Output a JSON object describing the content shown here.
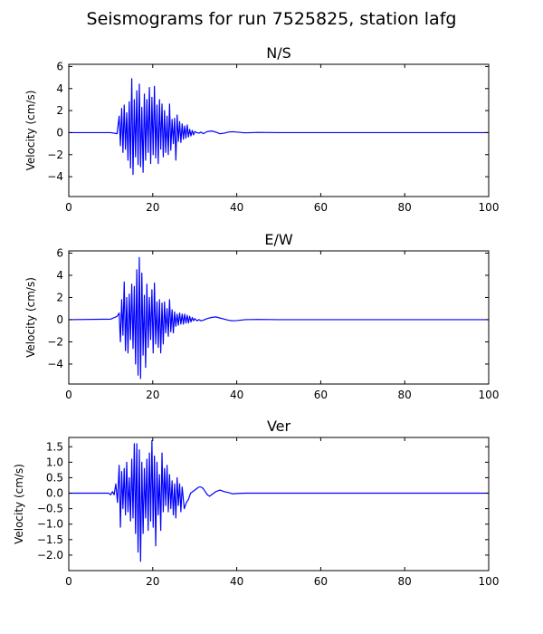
{
  "figure": {
    "title": "Seismograms for run 7525825, station lafg"
  },
  "chart_data": [
    {
      "type": "line",
      "title": "N/S",
      "xlabel": "",
      "ylabel": "Velocity (cm/s)",
      "xlim": [
        0,
        100
      ],
      "ylim": [
        -5.8,
        6.2
      ],
      "xticks": [
        0,
        20,
        40,
        60,
        80,
        100
      ],
      "xtick_labels": [
        "0",
        "20",
        "40",
        "60",
        "80",
        "100"
      ],
      "yticks": [
        -4,
        -2,
        0,
        2,
        4,
        6
      ],
      "ytick_labels": [
        "−4",
        "−2",
        "0",
        "2",
        "4",
        "6"
      ],
      "grid": false,
      "series": [
        {
          "color": "#0000ff",
          "x": [
            0,
            10,
            11.5,
            12.0,
            12.3,
            12.6,
            12.9,
            13.2,
            13.5,
            13.8,
            14.1,
            14.4,
            14.7,
            15.0,
            15.3,
            15.6,
            15.9,
            16.2,
            16.5,
            16.8,
            17.1,
            17.4,
            17.7,
            18.0,
            18.3,
            18.6,
            18.9,
            19.2,
            19.5,
            19.8,
            20.1,
            20.4,
            20.7,
            21.0,
            21.3,
            21.6,
            21.9,
            22.2,
            22.5,
            22.8,
            23.1,
            23.4,
            23.7,
            24.0,
            24.3,
            24.6,
            24.9,
            25.2,
            25.5,
            25.8,
            26.1,
            26.4,
            26.7,
            27.0,
            27.3,
            27.6,
            27.9,
            28.2,
            28.5,
            28.8,
            29.1,
            29.4,
            29.7,
            30.0,
            30.5,
            31.0,
            31.5,
            32.0,
            33.0,
            34.0,
            35.0,
            36.0,
            37.0,
            38.0,
            39.0,
            40.0,
            42.0,
            45.0,
            50.0,
            60.0,
            80.0,
            100.0
          ],
          "y": [
            0,
            0,
            -0.1,
            1.5,
            -1.2,
            2.2,
            -1.8,
            2.5,
            -1.5,
            1.8,
            -2.5,
            2.8,
            -3.2,
            4.9,
            -3.8,
            3.0,
            -2.2,
            3.8,
            -2.9,
            4.4,
            -3.1,
            2.3,
            -3.6,
            3.5,
            -2.5,
            3.0,
            -1.8,
            4.1,
            -2.8,
            3.2,
            -2.0,
            4.2,
            -2.3,
            2.5,
            -2.8,
            3.0,
            -1.5,
            2.6,
            -2.2,
            2.0,
            -1.8,
            1.5,
            -2.0,
            2.6,
            -1.6,
            1.2,
            -1.0,
            1.3,
            -2.5,
            1.6,
            -0.8,
            1.0,
            -0.9,
            0.8,
            -0.6,
            0.6,
            -0.5,
            0.7,
            -0.4,
            0.3,
            -0.3,
            0.2,
            -0.2,
            0.1,
            0.0,
            -0.05,
            0.05,
            -0.1,
            0.1,
            0.15,
            0.05,
            -0.1,
            -0.05,
            0.05,
            0.08,
            0.05,
            -0.02,
            0.02,
            0.0,
            0.0,
            0.0,
            0.0
          ]
        }
      ]
    },
    {
      "type": "line",
      "title": "E/W",
      "xlabel": "",
      "ylabel": "Velocity (cm/s)",
      "xlim": [
        0,
        100
      ],
      "ylim": [
        -5.8,
        6.2
      ],
      "xticks": [
        0,
        20,
        40,
        60,
        80,
        100
      ],
      "xtick_labels": [
        "0",
        "20",
        "40",
        "60",
        "80",
        "100"
      ],
      "yticks": [
        -4,
        -2,
        0,
        2,
        4,
        6
      ],
      "ytick_labels": [
        "−4",
        "−2",
        "0",
        "2",
        "4",
        "6"
      ],
      "grid": false,
      "series": [
        {
          "color": "#0000ff",
          "x": [
            0,
            10,
            11.5,
            12.0,
            12.3,
            12.6,
            12.9,
            13.2,
            13.5,
            13.8,
            14.1,
            14.4,
            14.7,
            15.0,
            15.3,
            15.6,
            15.9,
            16.2,
            16.5,
            16.8,
            17.1,
            17.4,
            17.7,
            18.0,
            18.3,
            18.6,
            18.9,
            19.2,
            19.5,
            19.8,
            20.1,
            20.4,
            20.7,
            21.0,
            21.3,
            21.6,
            21.9,
            22.2,
            22.5,
            22.8,
            23.1,
            23.4,
            23.7,
            24.0,
            24.3,
            24.6,
            24.9,
            25.2,
            25.5,
            25.8,
            26.1,
            26.4,
            26.7,
            27.0,
            27.3,
            27.6,
            27.9,
            28.2,
            28.5,
            28.8,
            29.1,
            29.4,
            29.7,
            30.0,
            30.5,
            31.0,
            31.5,
            32.0,
            33.0,
            34.0,
            35.0,
            36.0,
            37.0,
            38.0,
            39.0,
            40.0,
            42.0,
            45.0,
            50.0,
            60.0,
            80.0,
            100.0
          ],
          "y": [
            0,
            0.05,
            0.3,
            0.6,
            -2.0,
            1.8,
            -1.4,
            3.4,
            -2.8,
            2.0,
            -3.0,
            2.3,
            -1.8,
            3.2,
            -2.6,
            3.0,
            -4.0,
            4.5,
            -5.0,
            5.6,
            -5.3,
            4.2,
            -3.2,
            2.2,
            -4.3,
            3.2,
            -2.5,
            2.0,
            -1.8,
            2.7,
            -3.0,
            3.3,
            -2.2,
            1.6,
            -2.5,
            1.8,
            -3.0,
            1.5,
            -2.2,
            1.6,
            -1.2,
            1.0,
            -1.5,
            1.8,
            -1.1,
            0.9,
            -1.2,
            0.7,
            -0.6,
            0.5,
            -0.5,
            0.6,
            -0.4,
            0.5,
            -0.4,
            0.5,
            -0.3,
            0.4,
            -0.3,
            0.3,
            -0.2,
            0.2,
            -0.1,
            0.1,
            -0.1,
            0.0,
            -0.1,
            -0.05,
            0.1,
            0.2,
            0.25,
            0.15,
            0.05,
            -0.05,
            -0.1,
            -0.08,
            0.0,
            0.02,
            0.0,
            0.0,
            0.0,
            0.0
          ]
        }
      ]
    },
    {
      "type": "line",
      "title": "Ver",
      "xlabel": "",
      "ylabel": "Velocity (cm/s)",
      "xlim": [
        0,
        100
      ],
      "ylim": [
        -2.5,
        1.8
      ],
      "xticks": [
        0,
        20,
        40,
        60,
        80,
        100
      ],
      "xtick_labels": [
        "0",
        "20",
        "40",
        "60",
        "80",
        "100"
      ],
      "yticks": [
        -2.0,
        -1.5,
        -1.0,
        -0.5,
        0.0,
        0.5,
        1.0,
        1.5
      ],
      "ytick_labels": [
        "−2.0",
        "−1.5",
        "−1.0",
        "−0.5",
        "0.0",
        "0.5",
        "1.0",
        "1.5"
      ],
      "grid": false,
      "series": [
        {
          "color": "#0000ff",
          "x": [
            0,
            9.5,
            10.0,
            10.4,
            10.8,
            11.2,
            11.6,
            12.0,
            12.3,
            12.6,
            12.9,
            13.2,
            13.5,
            13.8,
            14.1,
            14.4,
            14.7,
            15.0,
            15.3,
            15.6,
            15.9,
            16.2,
            16.5,
            16.8,
            17.1,
            17.4,
            17.7,
            18.0,
            18.3,
            18.6,
            18.9,
            19.2,
            19.5,
            19.8,
            20.1,
            20.4,
            20.7,
            21.0,
            21.3,
            21.6,
            21.9,
            22.2,
            22.5,
            22.8,
            23.1,
            23.4,
            23.7,
            24.0,
            24.3,
            24.6,
            24.9,
            25.2,
            25.5,
            25.8,
            26.1,
            26.4,
            26.7,
            27.0,
            27.5,
            28.0,
            28.5,
            29.0,
            29.5,
            30.0,
            30.5,
            31.0,
            31.5,
            32.0,
            32.5,
            33.0,
            33.5,
            34.0,
            35.0,
            36.0,
            37.0,
            38.0,
            39.0,
            40.0,
            42.0,
            45.0,
            50.0,
            60.0,
            80.0,
            100.0
          ],
          "y": [
            0,
            0,
            -0.05,
            0.05,
            -0.05,
            0.3,
            -0.3,
            0.9,
            -1.1,
            0.7,
            -0.5,
            0.8,
            -0.7,
            1.0,
            -0.6,
            0.5,
            -0.9,
            1.1,
            -0.8,
            1.6,
            -1.3,
            1.6,
            -1.9,
            1.4,
            -2.2,
            1.0,
            -1.3,
            0.8,
            -0.8,
            1.1,
            -1.2,
            1.3,
            -0.9,
            1.7,
            -1.1,
            1.2,
            -1.7,
            1.0,
            -0.7,
            0.6,
            -1.2,
            1.3,
            -0.6,
            0.8,
            -0.4,
            0.9,
            -0.6,
            0.6,
            -0.5,
            0.4,
            -0.7,
            0.3,
            -0.8,
            0.5,
            -0.4,
            0.3,
            -0.6,
            0.2,
            -0.5,
            -0.3,
            -0.2,
            0.0,
            0.05,
            0.1,
            0.15,
            0.2,
            0.2,
            0.15,
            0.05,
            -0.05,
            -0.1,
            -0.05,
            0.05,
            0.1,
            0.05,
            0.02,
            -0.02,
            -0.01,
            0.0,
            0.0,
            0.0,
            0.0,
            0.0,
            0.0
          ]
        }
      ]
    }
  ]
}
